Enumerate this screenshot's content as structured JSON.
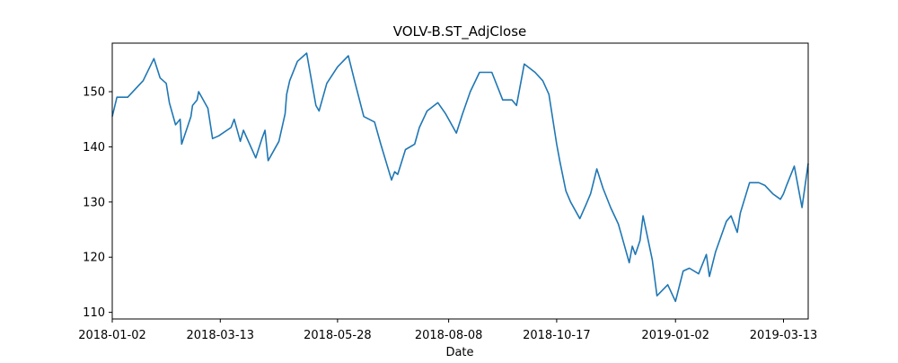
{
  "chart_data": {
    "type": "line",
    "title": "VOLV-B.ST_AdjClose",
    "xlabel": "Date",
    "ylabel": "",
    "x_range": [
      "2018-01-02",
      "2019-03-29"
    ],
    "ylim": [
      108.8,
      158.8
    ],
    "x_ticks": [
      "2018-01-02",
      "2018-03-13",
      "2018-05-28",
      "2018-08-08",
      "2018-10-17",
      "2019-01-02",
      "2019-03-13"
    ],
    "y_ticks": [
      110,
      120,
      130,
      140,
      150
    ],
    "grid": false,
    "legend": "none",
    "line_color": "#1f77b4",
    "series": [
      {
        "x": [
          "2018-01-02",
          "2018-01-05",
          "2018-01-12",
          "2018-01-22",
          "2018-01-29",
          "2018-02-02",
          "2018-02-06",
          "2018-02-08",
          "2018-02-12",
          "2018-02-15",
          "2018-02-16",
          "2018-02-19",
          "2018-02-22",
          "2018-02-23",
          "2018-02-26",
          "2018-02-27",
          "2018-03-05",
          "2018-03-08",
          "2018-03-12",
          "2018-03-20",
          "2018-03-22",
          "2018-03-26",
          "2018-03-28",
          "2018-04-05",
          "2018-04-09",
          "2018-04-11",
          "2018-04-13",
          "2018-04-20",
          "2018-04-24",
          "2018-04-25",
          "2018-04-27",
          "2018-05-02",
          "2018-05-08",
          "2018-05-14",
          "2018-05-16",
          "2018-05-21",
          "2018-05-28",
          "2018-06-04",
          "2018-06-08",
          "2018-06-14",
          "2018-06-21",
          "2018-06-25",
          "2018-07-02",
          "2018-07-04",
          "2018-07-06",
          "2018-07-11",
          "2018-07-17",
          "2018-07-20",
          "2018-07-25",
          "2018-08-01",
          "2018-08-06",
          "2018-08-13",
          "2018-08-17",
          "2018-08-22",
          "2018-08-28",
          "2018-09-05",
          "2018-09-12",
          "2018-09-18",
          "2018-09-21",
          "2018-09-26",
          "2018-10-03",
          "2018-10-08",
          "2018-10-12",
          "2018-10-17",
          "2018-10-19",
          "2018-10-23",
          "2018-10-26",
          "2018-11-01",
          "2018-11-05",
          "2018-11-08",
          "2018-11-12",
          "2018-11-16",
          "2018-11-21",
          "2018-11-26",
          "2018-11-28",
          "2018-12-03",
          "2018-12-05",
          "2018-12-07",
          "2018-12-10",
          "2018-12-12",
          "2018-12-18",
          "2018-12-21",
          "2018-12-28",
          "2019-01-02",
          "2019-01-07",
          "2019-01-11",
          "2019-01-17",
          "2019-01-22",
          "2019-01-24",
          "2019-01-28",
          "2019-02-04",
          "2019-02-07",
          "2019-02-11",
          "2019-02-13",
          "2019-02-19",
          "2019-02-25",
          "2019-03-01",
          "2019-03-06",
          "2019-03-11",
          "2019-03-13",
          "2019-03-15",
          "2019-03-20",
          "2019-03-25",
          "2019-03-29"
        ],
        "y": [
          145.5,
          149.0,
          149.0,
          152.0,
          156.0,
          152.5,
          151.5,
          148.0,
          144.0,
          145.0,
          140.5,
          143.0,
          145.5,
          147.5,
          148.5,
          150.0,
          147.0,
          141.5,
          142.0,
          143.5,
          145.0,
          141.0,
          143.0,
          138.0,
          141.5,
          143.0,
          137.5,
          141.0,
          146.0,
          149.5,
          152.0,
          155.5,
          157.0,
          147.5,
          146.5,
          151.5,
          154.5,
          156.5,
          152.0,
          145.5,
          144.5,
          140.5,
          134.0,
          135.5,
          135.0,
          139.5,
          140.5,
          143.5,
          146.5,
          148.0,
          146.0,
          142.5,
          146.0,
          150.0,
          153.5,
          153.5,
          148.5,
          148.5,
          147.5,
          155.0,
          153.5,
          152.0,
          149.5,
          140.5,
          137.5,
          132.0,
          130.0,
          127.0,
          129.5,
          131.5,
          136.0,
          132.5,
          129.0,
          126.0,
          124.0,
          119.0,
          122.0,
          120.5,
          123.0,
          127.5,
          119.5,
          113.0,
          115.0,
          112.0,
          117.5,
          118.0,
          117.0,
          120.5,
          116.5,
          121.0,
          126.5,
          127.5,
          124.5,
          128.0,
          133.5,
          133.5,
          133.0,
          131.5,
          130.5,
          131.5,
          133.0,
          136.5,
          129.0,
          137.0
        ]
      }
    ]
  }
}
